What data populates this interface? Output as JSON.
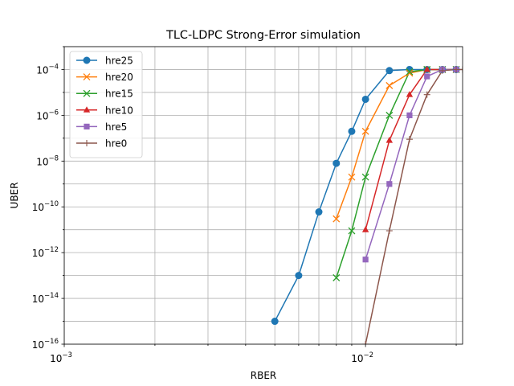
{
  "chart_data": {
    "type": "line",
    "title": "TLC-LDPC Strong-Error simulation",
    "xlabel": "RBER",
    "ylabel": "UBER",
    "xscale": "log",
    "yscale": "log",
    "xlim": [
      0.001,
      0.021
    ],
    "ylim": [
      1e-16,
      0.001
    ],
    "grid": true,
    "legend_position": "upper-left",
    "x_tick_labels": [
      {
        "value": 0.001,
        "base": "10",
        "exp": "−3"
      },
      {
        "value": 0.01,
        "base": "10",
        "exp": "−2"
      }
    ],
    "y_tick_labels": [
      {
        "value": 1e-16,
        "base": "10",
        "exp": "−16"
      },
      {
        "value": 1e-14,
        "base": "10",
        "exp": "−14"
      },
      {
        "value": 1e-12,
        "base": "10",
        "exp": "−12"
      },
      {
        "value": 1e-10,
        "base": "10",
        "exp": "−10"
      },
      {
        "value": 1e-08,
        "base": "10",
        "exp": "−8"
      },
      {
        "value": 1e-06,
        "base": "10",
        "exp": "−6"
      },
      {
        "value": 0.0001,
        "base": "10",
        "exp": "−4"
      }
    ],
    "series": [
      {
        "name": "hre25",
        "color": "#1f77b4",
        "marker": "circle",
        "points": [
          [
            0.005,
            1e-15
          ],
          [
            0.006,
            1e-13
          ],
          [
            0.007,
            6e-11
          ],
          [
            0.008,
            8e-09
          ],
          [
            0.009,
            2e-07
          ],
          [
            0.01,
            5e-06
          ],
          [
            0.012,
            9e-05
          ],
          [
            0.014,
            0.0001
          ],
          [
            0.016,
            0.0001
          ],
          [
            0.018,
            0.0001
          ],
          [
            0.02,
            0.0001
          ]
        ]
      },
      {
        "name": "hre20",
        "color": "#ff7f0e",
        "marker": "x",
        "points": [
          [
            0.008,
            3e-11
          ],
          [
            0.009,
            2e-09
          ],
          [
            0.01,
            2e-07
          ],
          [
            0.012,
            2e-05
          ],
          [
            0.014,
            7e-05
          ],
          [
            0.016,
            0.0001
          ],
          [
            0.018,
            0.0001
          ],
          [
            0.02,
            0.0001
          ]
        ]
      },
      {
        "name": "hre15",
        "color": "#2ca02c",
        "marker": "x",
        "points": [
          [
            0.008,
            8e-14
          ],
          [
            0.009,
            9e-12
          ],
          [
            0.01,
            2e-09
          ],
          [
            0.012,
            1e-06
          ],
          [
            0.014,
            8e-05
          ],
          [
            0.016,
            0.0001
          ],
          [
            0.018,
            0.0001
          ],
          [
            0.02,
            0.0001
          ]
        ]
      },
      {
        "name": "hre10",
        "color": "#d62728",
        "marker": "triangle",
        "points": [
          [
            0.01,
            1e-11
          ],
          [
            0.012,
            8e-08
          ],
          [
            0.014,
            8e-06
          ],
          [
            0.016,
            0.0001
          ],
          [
            0.018,
            0.0001
          ],
          [
            0.02,
            0.0001
          ]
        ]
      },
      {
        "name": "hre5",
        "color": "#9467bd",
        "marker": "square",
        "points": [
          [
            0.01,
            5e-13
          ],
          [
            0.012,
            1e-09
          ],
          [
            0.014,
            1e-06
          ],
          [
            0.016,
            5e-05
          ],
          [
            0.018,
            0.0001
          ],
          [
            0.02,
            0.0001
          ]
        ]
      },
      {
        "name": "hre0",
        "color": "#8c564b",
        "marker": "plus",
        "points": [
          [
            0.01,
            1e-16
          ],
          [
            0.012,
            9e-12
          ],
          [
            0.014,
            9e-08
          ],
          [
            0.016,
            8e-06
          ],
          [
            0.018,
            9e-05
          ],
          [
            0.02,
            0.0001
          ],
          [
            0.021,
            0.0001
          ]
        ]
      }
    ]
  }
}
